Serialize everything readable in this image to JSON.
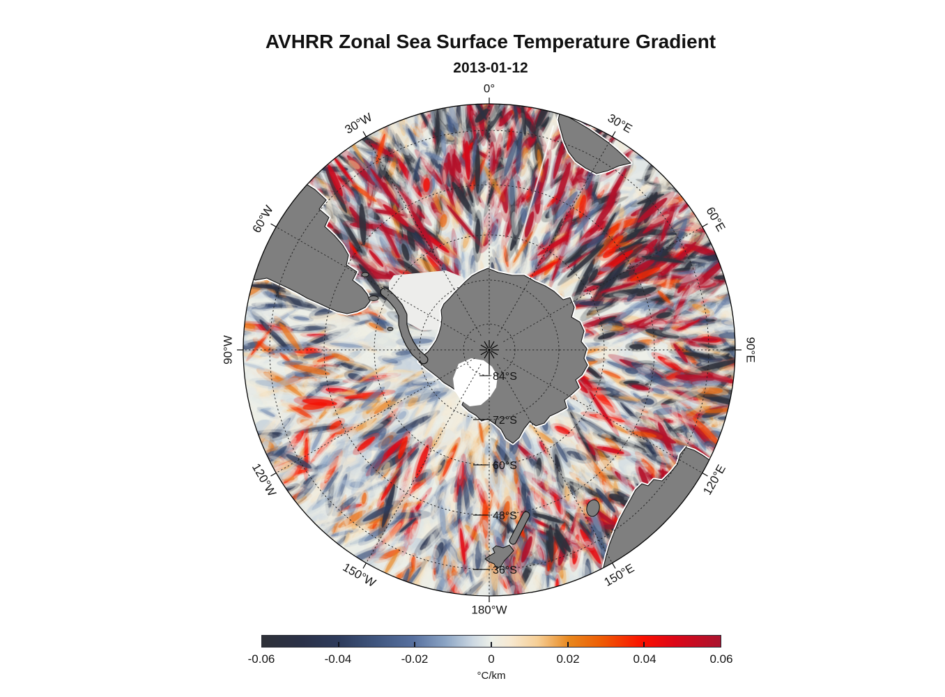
{
  "title": "AVHRR Zonal Sea Surface Temperature Gradient",
  "subtitle": "2013-01-12",
  "map": {
    "ocean_color": "#edefe8",
    "land_color": "#7f7f7f",
    "coast_color": "#141414",
    "ice_color": "#ffffff",
    "sea_ice_color": "#ededeb",
    "meridian_labels": [
      "0°",
      "30°E",
      "60°E",
      "90°E",
      "120°E",
      "150°E",
      "180°W",
      "150°W",
      "120°W",
      "90°W",
      "60°W",
      "30°W"
    ],
    "latitude_labels": [
      "84°S",
      "72°S",
      "60°S",
      "48°S",
      "36°S"
    ]
  },
  "colorbar": {
    "unit": "°C/km",
    "ticks": [
      "-0.06",
      "-0.04",
      "-0.02",
      "0",
      "0.02",
      "0.04",
      "0.06"
    ],
    "min": -0.06,
    "max": 0.06,
    "gradient": [
      [
        0.0,
        "#2e3138"
      ],
      [
        0.08,
        "#2b3147"
      ],
      [
        0.17,
        "#2e3c5d"
      ],
      [
        0.25,
        "#40567f"
      ],
      [
        0.33,
        "#57709f"
      ],
      [
        0.4,
        "#8ba4c4"
      ],
      [
        0.46,
        "#ccd8e2"
      ],
      [
        0.5,
        "#edf0e9"
      ],
      [
        0.54,
        "#f7e9d2"
      ],
      [
        0.6,
        "#f6cf97"
      ],
      [
        0.67,
        "#e8871d"
      ],
      [
        0.74,
        "#ee5c04"
      ],
      [
        0.83,
        "#fa1000"
      ],
      [
        0.9,
        "#dc0617"
      ],
      [
        1.0,
        "#aa142f"
      ]
    ]
  },
  "chart_data": {
    "type": "heatmap",
    "title": "AVHRR Zonal Sea Surface Temperature Gradient",
    "date": "2013-01-12",
    "projection": "south polar stereographic, South Pole centered, 0° meridian at top",
    "variable": "zonal sea surface temperature gradient",
    "units": "°C/km",
    "value_range": [
      -0.06,
      0.06
    ],
    "colorbar_ticks": [
      -0.06,
      -0.04,
      -0.02,
      0,
      0.02,
      0.04,
      0.06
    ],
    "colorbar_palette": "diverging: dark slate → navy → steel blue → pale white-green (0) → cream → orange → red → crimson",
    "graticule": {
      "meridian_interval_deg": 30,
      "meridian_labels": [
        "0°",
        "30°E",
        "60°E",
        "90°E",
        "120°E",
        "150°E",
        "180°W",
        "150°W",
        "120°W",
        "90°W",
        "60°W",
        "30°W"
      ],
      "parallel_labels": [
        "84°S",
        "72°S",
        "60°S",
        "48°S",
        "36°S"
      ],
      "style": "dotted black"
    },
    "land_regions_visible": [
      "Antarctica (center, with white Ross/coastal ice areas)",
      "southern South America (upper left)",
      "southern Africa (upper right)",
      "southern Australia (lower right)",
      "Tasmania",
      "New Zealand (bottom center)"
    ],
    "field_description": "noisy mesoscale eddy field of alternating ±0.02–0.06 °C/km red/blue streaks; strongest activity in the Agulhas Return Current sector (0°–90°E) and Brazil–Malvinas confluence near South America (upper left); pale near-zero values over most of the Pacific sector and near the Antarctic coast"
  }
}
